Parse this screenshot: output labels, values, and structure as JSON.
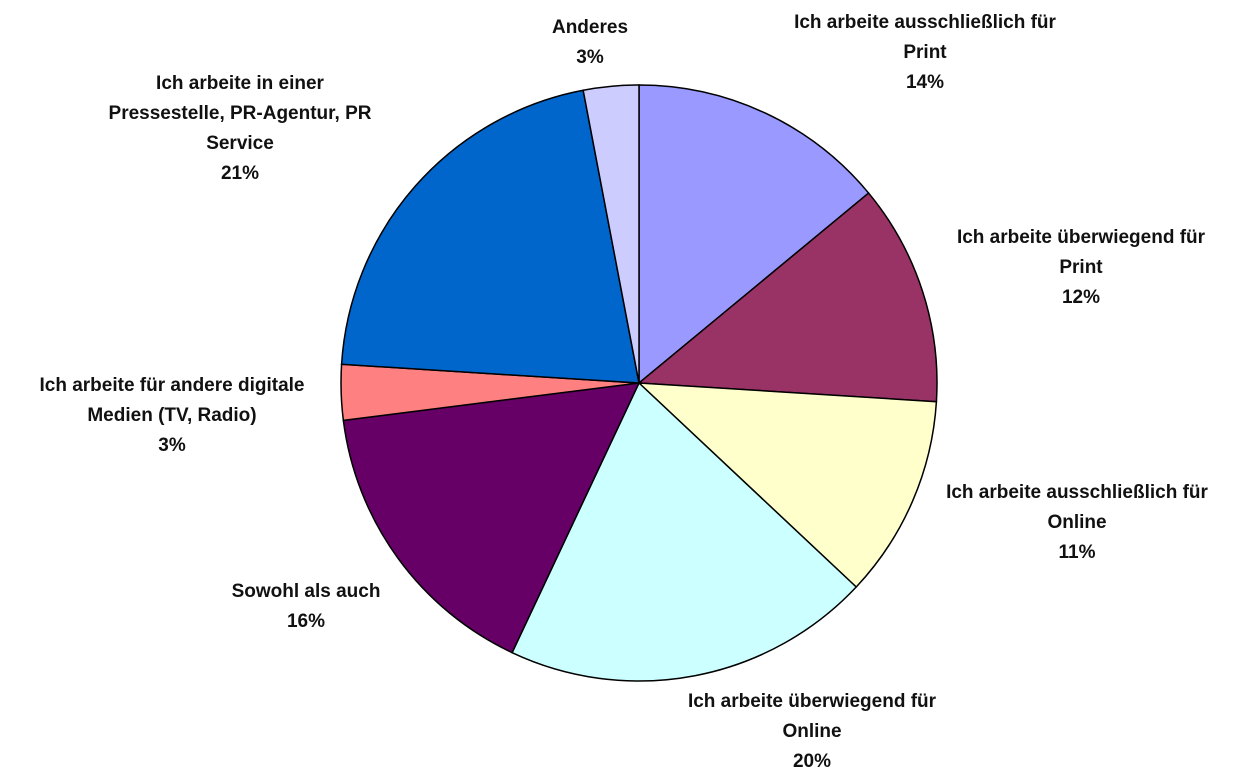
{
  "chart_data": {
    "type": "pie",
    "title": "",
    "slices": [
      {
        "label_lines": [
          "Ich arbeite ausschließlich für",
          "Print"
        ],
        "value": 14,
        "value_label": "14%",
        "color": "#9999FF"
      },
      {
        "label_lines": [
          "Ich arbeite überwiegend für",
          "Print"
        ],
        "value": 12,
        "value_label": "12%",
        "color": "#993366"
      },
      {
        "label_lines": [
          "Ich arbeite ausschließlich für",
          "Online"
        ],
        "value": 11,
        "value_label": "11%",
        "color": "#FFFFCC"
      },
      {
        "label_lines": [
          "Ich arbeite überwiegend für",
          "Online"
        ],
        "value": 20,
        "value_label": "20%",
        "color": "#CCFFFF"
      },
      {
        "label_lines": [
          "Sowohl als auch"
        ],
        "value": 16,
        "value_label": "16%",
        "color": "#660066"
      },
      {
        "label_lines": [
          "Ich arbeite für andere digitale",
          "Medien (TV, Radio)"
        ],
        "value": 3,
        "value_label": "3%",
        "color": "#FF8080"
      },
      {
        "label_lines": [
          "Ich arbeite in einer",
          "Pressestelle, PR-Agentur, PR",
          "Service"
        ],
        "value": 21,
        "value_label": "21%",
        "color": "#0066CC"
      },
      {
        "label_lines": [
          "Anderes"
        ],
        "value": 3,
        "value_label": "3%",
        "color": "#CCCCFF"
      }
    ]
  }
}
